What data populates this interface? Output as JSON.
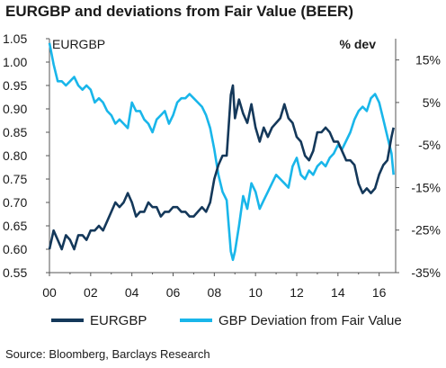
{
  "title": "EURGBP and deviations from Fair Value (BEER)",
  "source": "Source: Bloomberg, Barclays Research",
  "chart_data": {
    "type": "line",
    "left_axis_unit": "EURGBP",
    "right_axis_unit": "% dev",
    "left_ylim": [
      0.55,
      1.05
    ],
    "left_ticks": [
      "1.05",
      "1.00",
      "0.95",
      "0.90",
      "0.85",
      "0.80",
      "0.75",
      "0.70",
      "0.65",
      "0.60",
      "0.55"
    ],
    "right_ylim": [
      -35,
      20
    ],
    "right_ticks": [
      "15%",
      "5%",
      "-5%",
      "-15%",
      "-25%",
      "-35%"
    ],
    "xlim": [
      2000,
      2016.8
    ],
    "x_ticks": [
      "00",
      "02",
      "04",
      "06",
      "08",
      "10",
      "12",
      "14",
      "16"
    ],
    "colors": {
      "eurgbp": "#14385a",
      "deviation": "#19b6ea",
      "axis": "#555555"
    },
    "series": [
      {
        "name": "EURGBP",
        "axis": "left",
        "x": [
          2000.0,
          2000.2,
          2000.4,
          2000.6,
          2000.8,
          2001.0,
          2001.2,
          2001.4,
          2001.6,
          2001.8,
          2002.0,
          2002.2,
          2002.4,
          2002.6,
          2002.8,
          2003.0,
          2003.2,
          2003.4,
          2003.6,
          2003.8,
          2004.0,
          2004.2,
          2004.4,
          2004.6,
          2004.8,
          2005.0,
          2005.2,
          2005.4,
          2005.6,
          2005.8,
          2006.0,
          2006.2,
          2006.4,
          2006.6,
          2006.8,
          2007.0,
          2007.2,
          2007.4,
          2007.6,
          2007.8,
          2008.0,
          2008.2,
          2008.4,
          2008.6,
          2008.8,
          2008.9,
          2009.0,
          2009.2,
          2009.4,
          2009.6,
          2009.8,
          2010.0,
          2010.2,
          2010.4,
          2010.6,
          2010.8,
          2011.0,
          2011.2,
          2011.4,
          2011.6,
          2011.8,
          2012.0,
          2012.2,
          2012.4,
          2012.6,
          2012.8,
          2013.0,
          2013.2,
          2013.4,
          2013.6,
          2013.8,
          2014.0,
          2014.2,
          2014.4,
          2014.6,
          2014.8,
          2015.0,
          2015.2,
          2015.4,
          2015.6,
          2015.8,
          2016.0,
          2016.2,
          2016.4,
          2016.6,
          2016.7
        ],
        "values": [
          0.6,
          0.64,
          0.62,
          0.6,
          0.63,
          0.62,
          0.6,
          0.63,
          0.63,
          0.62,
          0.64,
          0.64,
          0.65,
          0.64,
          0.66,
          0.68,
          0.7,
          0.69,
          0.7,
          0.72,
          0.7,
          0.67,
          0.68,
          0.68,
          0.7,
          0.69,
          0.69,
          0.67,
          0.68,
          0.68,
          0.69,
          0.69,
          0.68,
          0.68,
          0.67,
          0.67,
          0.68,
          0.69,
          0.68,
          0.7,
          0.75,
          0.78,
          0.8,
          0.8,
          0.93,
          0.95,
          0.88,
          0.92,
          0.89,
          0.87,
          0.91,
          0.86,
          0.83,
          0.86,
          0.84,
          0.86,
          0.87,
          0.88,
          0.91,
          0.88,
          0.87,
          0.84,
          0.83,
          0.8,
          0.79,
          0.81,
          0.85,
          0.85,
          0.86,
          0.85,
          0.83,
          0.83,
          0.81,
          0.79,
          0.79,
          0.78,
          0.74,
          0.72,
          0.73,
          0.72,
          0.73,
          0.76,
          0.78,
          0.79,
          0.84,
          0.86
        ]
      },
      {
        "name": "GBP Deviation from Fair Value",
        "axis": "right",
        "x": [
          2000.0,
          2000.2,
          2000.4,
          2000.6,
          2000.8,
          2001.0,
          2001.2,
          2001.4,
          2001.6,
          2001.8,
          2002.0,
          2002.2,
          2002.4,
          2002.6,
          2002.8,
          2003.0,
          2003.2,
          2003.4,
          2003.6,
          2003.8,
          2004.0,
          2004.2,
          2004.4,
          2004.6,
          2004.8,
          2005.0,
          2005.2,
          2005.4,
          2005.6,
          2005.8,
          2006.0,
          2006.2,
          2006.4,
          2006.6,
          2006.8,
          2007.0,
          2007.2,
          2007.4,
          2007.6,
          2007.8,
          2008.0,
          2008.2,
          2008.4,
          2008.6,
          2008.8,
          2008.9,
          2009.0,
          2009.2,
          2009.4,
          2009.6,
          2009.8,
          2010.0,
          2010.2,
          2010.4,
          2010.6,
          2010.8,
          2011.0,
          2011.2,
          2011.4,
          2011.6,
          2011.8,
          2012.0,
          2012.2,
          2012.4,
          2012.6,
          2012.8,
          2013.0,
          2013.2,
          2013.4,
          2013.6,
          2013.8,
          2014.0,
          2014.2,
          2014.4,
          2014.6,
          2014.8,
          2015.0,
          2015.2,
          2015.4,
          2015.6,
          2015.8,
          2016.0,
          2016.2,
          2016.4,
          2016.6,
          2016.7
        ],
        "values": [
          19,
          14,
          10,
          10,
          9,
          10,
          11,
          9,
          8,
          9,
          8,
          5,
          6,
          5,
          3,
          2,
          0,
          1,
          0,
          -1,
          5,
          3,
          3,
          1,
          0,
          -2,
          1,
          2,
          3,
          0,
          2,
          5,
          6,
          6,
          7,
          6,
          5,
          4,
          2,
          -1,
          -6,
          -12,
          -16,
          -18,
          -30,
          -32,
          -30,
          -24,
          -17,
          -20,
          -14,
          -16,
          -20,
          -18,
          -16,
          -14,
          -12,
          -13,
          -14,
          -15,
          -10,
          -8,
          -12,
          -13,
          -11,
          -12,
          -10,
          -9,
          -10,
          -8,
          -7,
          -5,
          -6,
          -4,
          -2,
          1,
          3,
          4,
          3,
          6,
          7,
          5,
          1,
          -3,
          -7,
          -12
        ]
      }
    ],
    "legend_placement": "bottom",
    "grid": false
  }
}
